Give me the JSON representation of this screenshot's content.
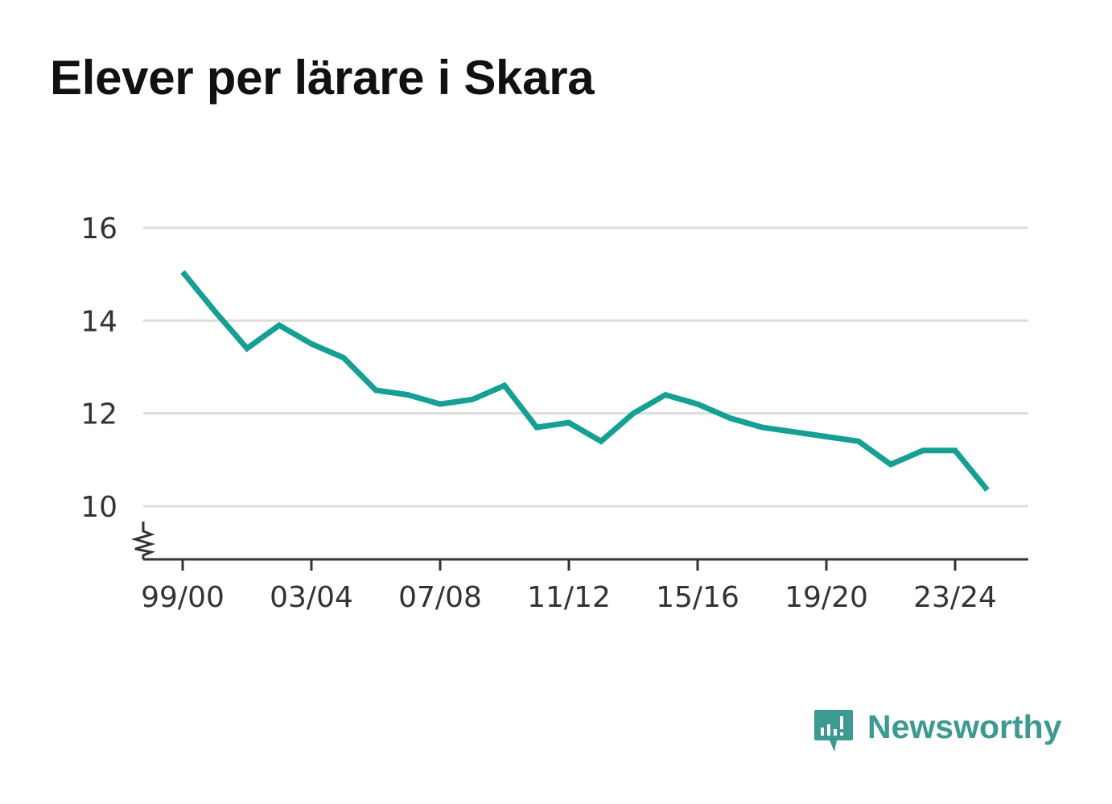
{
  "title": "Elever per lärare i Skara",
  "brand": {
    "name": "Newsworthy",
    "icon": "newsworthy-logo-icon",
    "color": "#3d9a91"
  },
  "colors": {
    "line": "#15a093",
    "grid": "#dddddd",
    "axis": "#333333",
    "text": "#333333"
  },
  "chart_data": {
    "type": "line",
    "title": "Elever per lärare i Skara",
    "xlabel": "",
    "ylabel": "",
    "x": [
      "99/00",
      "00/01",
      "01/02",
      "02/03",
      "03/04",
      "04/05",
      "05/06",
      "06/07",
      "07/08",
      "08/09",
      "09/10",
      "10/11",
      "11/12",
      "12/13",
      "13/14",
      "14/15",
      "15/16",
      "16/17",
      "17/18",
      "18/19",
      "19/20",
      "20/21",
      "21/22",
      "22/23",
      "23/24",
      "24/25"
    ],
    "x_tick_labels": [
      "99/00",
      "03/04",
      "07/08",
      "11/12",
      "15/16",
      "19/20",
      "23/24"
    ],
    "y_ticks": [
      "10",
      "12",
      "14",
      "16"
    ],
    "ylim": [
      8.85,
      16
    ],
    "y_axis_break": true,
    "grid": true,
    "series": [
      {
        "values": [
          15.05,
          14.2,
          13.4,
          13.9,
          13.5,
          13.2,
          12.5,
          12.4,
          12.2,
          12.3,
          12.6,
          11.7,
          11.8,
          11.4,
          12.0,
          12.4,
          12.2,
          11.9,
          11.7,
          11.6,
          11.5,
          11.4,
          10.9,
          11.2,
          11.2,
          10.35
        ]
      }
    ]
  }
}
